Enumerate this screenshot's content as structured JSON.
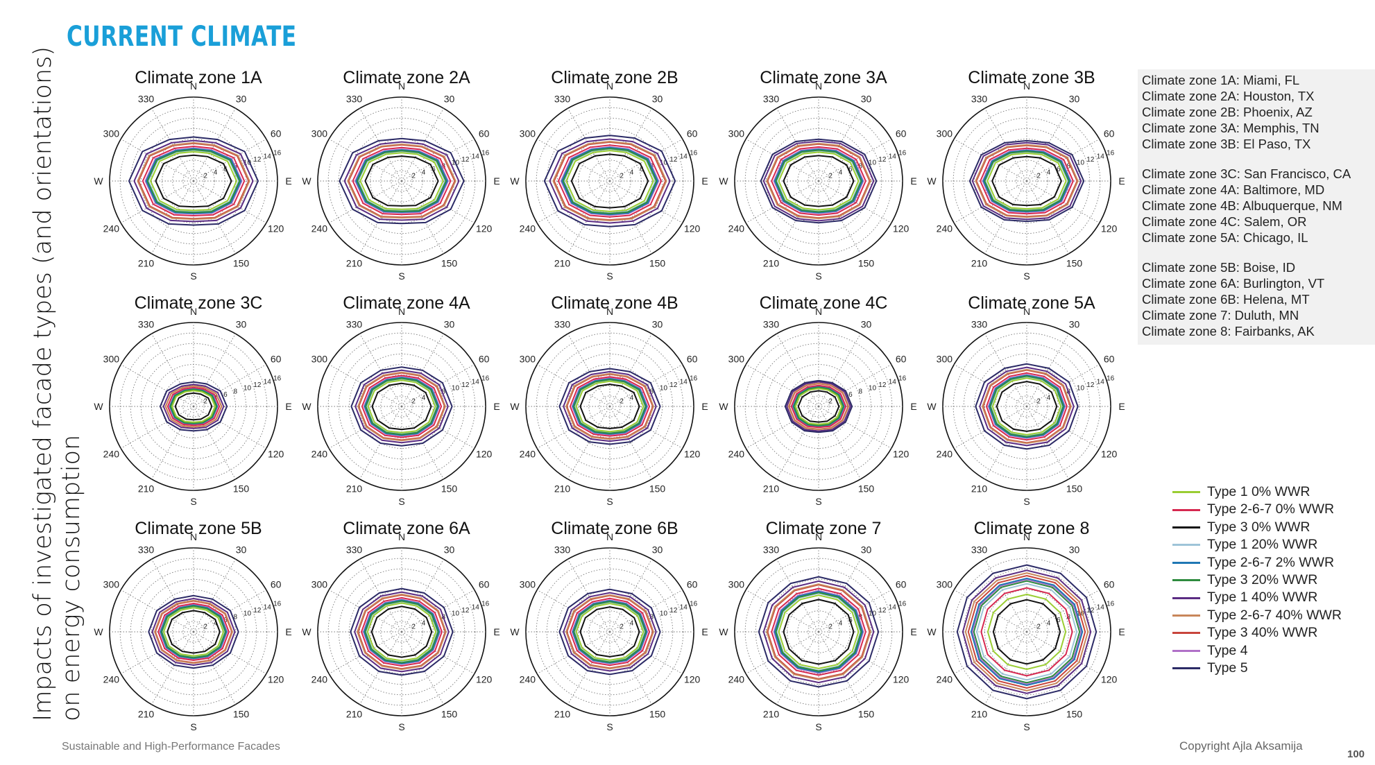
{
  "slide": {
    "title": "CURRENT CLIMATE",
    "y_title_line1": "Impacts of investigated facade types (and orientations)",
    "y_title_line2": "on energy consumption",
    "footer_left": "Sustainable and High-Performance Facades",
    "footer_right": "Copyright Ajla Aksamija",
    "page_number": "100"
  },
  "climate_zone_list": [
    [
      "Climate zone 1A: Miami, FL",
      "Climate zone 2A: Houston, TX",
      "Climate zone 2B: Phoenix, AZ",
      "Climate zone 3A: Memphis, TN",
      "Climate zone 3B: El Paso, TX"
    ],
    [
      "Climate zone 3C: San Francisco, CA",
      "Climate zone 4A: Baltimore, MD",
      "Climate zone 4B: Albuquerque, NM",
      "Climate zone 4C: Salem, OR",
      "Climate zone 5A: Chicago, IL"
    ],
    [
      "Climate zone 5B: Boise, ID",
      "Climate zone 6A: Burlington, VT",
      "Climate zone 6B: Helena, MT",
      "Climate zone 7: Duluth, MN",
      "Climate zone 8: Fairbanks, AK"
    ]
  ],
  "chart_data": {
    "type": "polar_line",
    "angular_ticks": [
      "N",
      "30",
      "60",
      "E",
      "120",
      "150",
      "S",
      "210",
      "240",
      "W",
      "300",
      "330"
    ],
    "radial_ticks": [
      2,
      4,
      6,
      8,
      10,
      12,
      14,
      16
    ],
    "rmax": 16,
    "orientations": [
      0,
      30,
      60,
      90,
      120,
      150,
      180,
      210,
      240,
      270,
      300,
      330
    ],
    "series_names": [
      "Type 1 0% WWR",
      "Type 2-6-7 0% WWR",
      "Type 3 0% WWR",
      "Type 1 20% WWR",
      "Type 2-6-7 2% WWR",
      "Type 3 20% WWR",
      "Type 1 40% WWR",
      "Type 2-6-7 40% WWR",
      "Type 3 40% WWR",
      "Type 4",
      "Type 5"
    ],
    "series_colors": [
      "#9acd32",
      "#d62850",
      "#111111",
      "#9ec4d8",
      "#1f77b4",
      "#2e8b3e",
      "#5b2c83",
      "#c8865a",
      "#c8453c",
      "#b070c8",
      "#2b2a66"
    ],
    "zones": [
      {
        "title": "Climate zone 1A",
        "base_values": [
          5.6,
          6.1,
          7.5,
          8.2,
          7.5,
          6.3,
          5.6,
          6.3,
          7.5,
          8.2,
          7.5,
          6.1
        ],
        "series_scale": [
          1.0,
          1.18,
          0.88,
          1.05,
          1.1,
          1.07,
          1.38,
          1.3,
          1.28,
          1.12,
          1.5
        ]
      },
      {
        "title": "Climate zone 2A",
        "base_values": [
          5.4,
          5.9,
          7.2,
          7.9,
          7.2,
          6.1,
          5.4,
          6.1,
          7.2,
          7.9,
          7.2,
          5.9
        ],
        "series_scale": [
          1.0,
          1.18,
          0.88,
          1.05,
          1.1,
          1.07,
          1.38,
          1.3,
          1.28,
          1.12,
          1.5
        ]
      },
      {
        "title": "Climate zone 2B",
        "base_values": [
          5.8,
          6.3,
          7.6,
          8.3,
          7.6,
          6.4,
          5.8,
          6.4,
          7.6,
          8.3,
          7.6,
          6.3
        ],
        "series_scale": [
          1.0,
          1.18,
          0.88,
          1.05,
          1.1,
          1.07,
          1.38,
          1.3,
          1.28,
          1.12,
          1.5
        ]
      },
      {
        "title": "Climate zone 3A",
        "base_values": [
          5.5,
          6.0,
          7.0,
          7.6,
          7.0,
          6.0,
          5.5,
          6.0,
          7.0,
          7.6,
          7.0,
          6.0
        ],
        "series_scale": [
          1.0,
          1.18,
          0.88,
          1.05,
          1.1,
          1.07,
          1.38,
          1.3,
          1.28,
          1.12,
          1.45
        ]
      },
      {
        "title": "Climate zone 3B",
        "base_values": [
          5.3,
          5.8,
          6.9,
          7.5,
          6.9,
          5.9,
          5.3,
          5.9,
          6.9,
          7.5,
          6.9,
          5.8
        ],
        "series_scale": [
          1.0,
          1.18,
          0.88,
          1.05,
          1.1,
          1.07,
          1.38,
          1.3,
          1.28,
          1.12,
          1.45
        ]
      },
      {
        "title": "Climate zone 3C",
        "base_values": [
          3.0,
          3.2,
          3.8,
          4.1,
          3.8,
          3.3,
          3.0,
          3.3,
          3.8,
          4.1,
          3.8,
          3.2
        ],
        "series_scale": [
          1.0,
          1.2,
          0.85,
          1.05,
          1.1,
          1.07,
          1.4,
          1.3,
          1.3,
          1.12,
          1.55
        ]
      },
      {
        "title": "Climate zone 4A",
        "base_values": [
          5.0,
          5.3,
          6.0,
          6.4,
          6.0,
          5.4,
          5.0,
          5.4,
          6.0,
          6.4,
          6.0,
          5.3
        ],
        "series_scale": [
          1.0,
          1.18,
          0.88,
          1.05,
          1.1,
          1.07,
          1.38,
          1.3,
          1.28,
          1.12,
          1.5
        ]
      },
      {
        "title": "Climate zone 4B",
        "base_values": [
          4.8,
          5.1,
          6.0,
          6.4,
          6.0,
          5.2,
          4.8,
          5.2,
          6.0,
          6.4,
          6.0,
          5.1
        ],
        "series_scale": [
          1.0,
          1.18,
          0.88,
          1.05,
          1.1,
          1.07,
          1.38,
          1.3,
          1.28,
          1.12,
          1.5
        ]
      },
      {
        "title": "Climate zone 4C",
        "base_values": [
          3.4,
          3.6,
          4.1,
          4.4,
          4.1,
          3.7,
          3.4,
          3.7,
          4.1,
          4.4,
          4.1,
          3.6
        ],
        "series_scale": [
          1.0,
          1.18,
          0.88,
          1.05,
          1.1,
          1.07,
          1.38,
          1.3,
          1.28,
          1.12,
          1.45
        ]
      },
      {
        "title": "Climate zone 5A",
        "base_values": [
          5.4,
          5.6,
          6.2,
          6.5,
          6.2,
          5.7,
          5.4,
          5.7,
          6.2,
          6.5,
          6.2,
          5.6
        ],
        "series_scale": [
          1.0,
          1.18,
          0.88,
          1.05,
          1.1,
          1.07,
          1.38,
          1.3,
          1.28,
          1.12,
          1.5
        ]
      },
      {
        "title": "Climate zone 5B",
        "base_values": [
          4.6,
          4.8,
          5.4,
          5.7,
          5.4,
          4.9,
          4.6,
          4.9,
          5.4,
          5.7,
          5.4,
          4.8
        ],
        "series_scale": [
          1.0,
          1.18,
          0.88,
          1.05,
          1.1,
          1.07,
          1.38,
          1.3,
          1.28,
          1.12,
          1.5
        ]
      },
      {
        "title": "Climate zone 6A",
        "base_values": [
          5.5,
          5.7,
          6.2,
          6.5,
          6.2,
          5.8,
          5.5,
          5.8,
          6.2,
          6.5,
          6.2,
          5.7
        ],
        "series_scale": [
          1.0,
          1.18,
          0.88,
          1.05,
          1.1,
          1.07,
          1.38,
          1.3,
          1.28,
          1.12,
          1.5
        ]
      },
      {
        "title": "Climate zone 6B",
        "base_values": [
          5.4,
          5.6,
          6.1,
          6.4,
          6.1,
          5.7,
          5.4,
          5.7,
          6.1,
          6.4,
          6.1,
          5.6
        ],
        "series_scale": [
          1.0,
          1.18,
          0.88,
          1.05,
          1.1,
          1.07,
          1.38,
          1.3,
          1.28,
          1.12,
          1.5
        ]
      },
      {
        "title": "Climate zone 7",
        "base_values": [
          7.0,
          7.1,
          7.4,
          7.6,
          7.4,
          7.2,
          7.0,
          7.2,
          7.4,
          7.6,
          7.4,
          7.1
        ],
        "series_scale": [
          1.0,
          1.18,
          0.88,
          1.05,
          1.1,
          1.07,
          1.38,
          1.3,
          1.28,
          1.12,
          1.5
        ]
      },
      {
        "title": "Climate zone 8",
        "base_values": [
          10.2,
          10.3,
          10.5,
          10.6,
          10.5,
          10.3,
          10.2,
          10.3,
          10.5,
          10.6,
          10.5,
          10.3
        ],
        "series_scale": [
          0.7,
          0.82,
          0.6,
          0.9,
          1.0,
          0.95,
          1.15,
          1.1,
          1.05,
          0.98,
          1.25
        ]
      }
    ]
  },
  "colors": {
    "title_accent": "#1a9fd8",
    "grid": "#666666",
    "info_panel_bg": "#f1f1f1"
  }
}
